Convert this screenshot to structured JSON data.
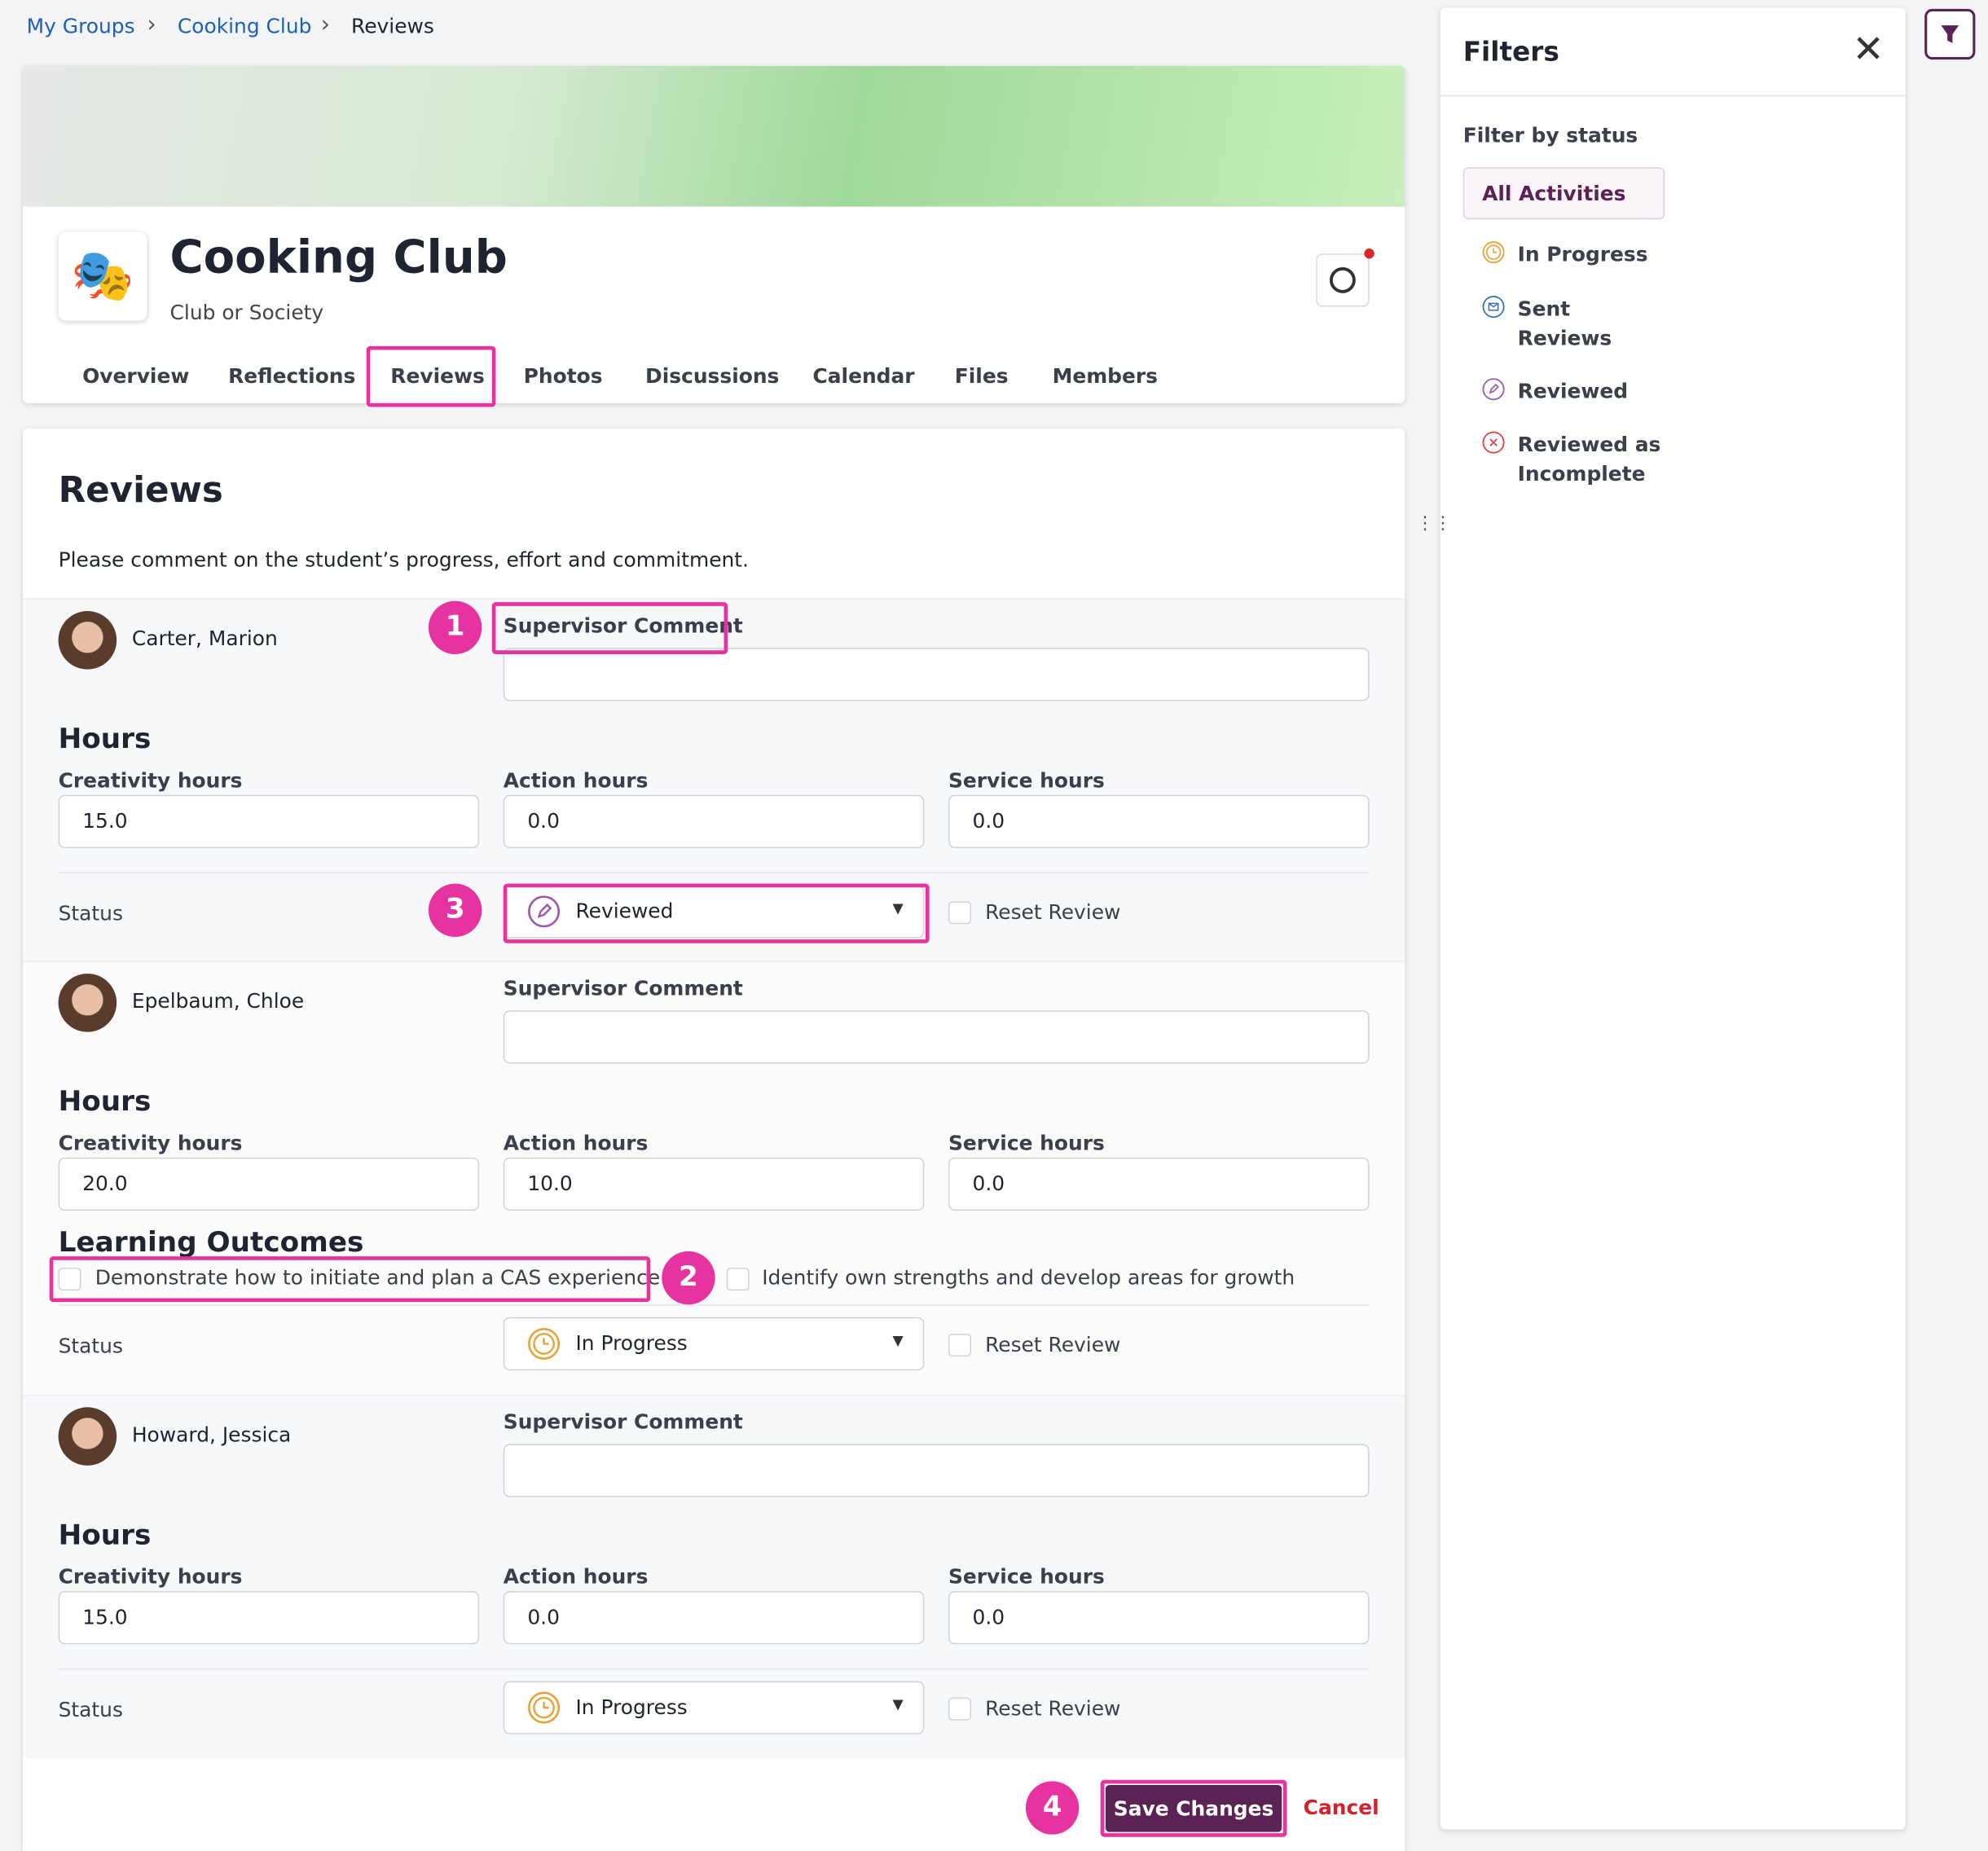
{
  "breadcrumb": [
    "My Groups",
    "Cooking Club",
    "Reviews"
  ],
  "group": {
    "name": "Cooking Club",
    "type": "Club or Society"
  },
  "tabs": [
    "Overview",
    "Reflections",
    "Reviews",
    "Photos",
    "Discussions",
    "Calendar",
    "Files",
    "Members"
  ],
  "reviews": {
    "title": "Reviews",
    "instructions": "Please comment on the student’s progress, effort and commitment.",
    "labels": {
      "comment": "Supervisor Comment",
      "hours": "Hours",
      "creativity": "Creativity hours",
      "action": "Action hours",
      "service": "Service hours",
      "status": "Status",
      "reset": "Reset Review",
      "outcomes": "Learning Outcomes"
    },
    "students": [
      {
        "name": "Carter, Marion",
        "creativity": "15.0",
        "action": "0.0",
        "service": "0.0",
        "status": "Reviewed"
      },
      {
        "name": "Epelbaum, Chloe",
        "creativity": "20.0",
        "action": "10.0",
        "service": "0.0",
        "outcomes": [
          "Demonstrate how to initiate and plan a CAS experience",
          "Identify own strengths and develop areas for growth"
        ],
        "status": "In Progress"
      },
      {
        "name": "Howard, Jessica",
        "creativity": "15.0",
        "action": "0.0",
        "service": "0.0",
        "status": "In Progress"
      }
    ]
  },
  "actions": {
    "save": "Save Changes",
    "cancel": "Cancel"
  },
  "filters": {
    "title": "Filters",
    "subtitle": "Filter by status",
    "options": [
      "All Activities",
      "In Progress",
      "Sent Reviews",
      "Reviewed",
      "Reviewed as Incomplete"
    ]
  },
  "annotations": [
    "1",
    "2",
    "3",
    "4"
  ]
}
